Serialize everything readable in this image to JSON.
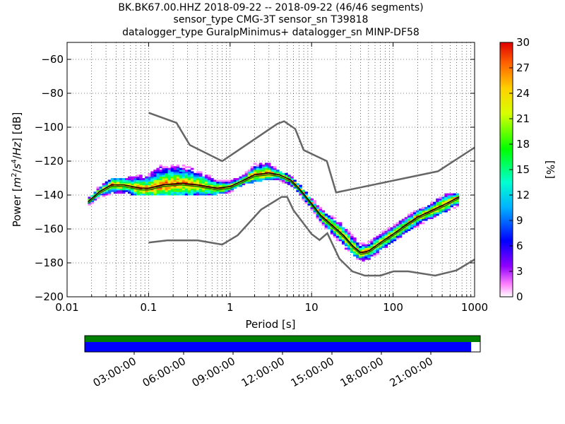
{
  "title": {
    "line1": "BK.BK67.00.HHZ   2018-09-22 -- 2018-09-22  (46/46 segments)",
    "line2": "sensor_type CMG-3T sensor_sn T39818",
    "line3": "datalogger_type GuralpMinimus+ datalogger_sn MINP-DF58"
  },
  "chart_data": {
    "type": "heatmap",
    "x_scale": "log",
    "xlabel": "Period [s]",
    "ylabel": "Power [m²/s⁴/Hz] [dB]",
    "xlim": [
      0.01,
      1000
    ],
    "ylim": [
      -200,
      -50
    ],
    "x_ticks": [
      {
        "value": 0.01,
        "label": "0.01"
      },
      {
        "value": 0.1,
        "label": "0.1"
      },
      {
        "value": 1,
        "label": "1"
      },
      {
        "value": 10,
        "label": "10"
      },
      {
        "value": 100,
        "label": "100"
      },
      {
        "value": 1000,
        "label": "1000"
      }
    ],
    "y_ticks": [
      {
        "value": -60,
        "label": "−60"
      },
      {
        "value": -80,
        "label": "−80"
      },
      {
        "value": -100,
        "label": "−100"
      },
      {
        "value": -120,
        "label": "−120"
      },
      {
        "value": -140,
        "label": "−140"
      },
      {
        "value": -160,
        "label": "−160"
      },
      {
        "value": -180,
        "label": "−180"
      },
      {
        "value": -200,
        "label": "−200"
      }
    ],
    "grid": true,
    "colorbar": {
      "label": "[%]",
      "range": [
        0,
        30
      ],
      "ticks": [
        "0",
        "3",
        "6",
        "9",
        "12",
        "15",
        "18",
        "21",
        "24",
        "27",
        "30"
      ],
      "colormap": "pqlx"
    },
    "noise_models": [
      {
        "name": "high-noise-model",
        "points": [
          [
            0.1,
            -91.5
          ],
          [
            0.22,
            -97.4
          ],
          [
            0.32,
            -110.5
          ],
          [
            0.8,
            -120
          ],
          [
            3.8,
            -98
          ],
          [
            4.6,
            -96.5
          ],
          [
            6.3,
            -101
          ],
          [
            8,
            -113.5
          ],
          [
            15.4,
            -120
          ],
          [
            20,
            -138.5
          ],
          [
            354.8,
            -126
          ],
          [
            1000,
            -112
          ]
        ]
      },
      {
        "name": "low-noise-model",
        "points": [
          [
            0.1,
            -168
          ],
          [
            0.17,
            -166.7
          ],
          [
            0.4,
            -166.7
          ],
          [
            0.8,
            -169.2
          ],
          [
            1.24,
            -163.7
          ],
          [
            2.4,
            -148.6
          ],
          [
            4.3,
            -141.1
          ],
          [
            5,
            -141.1
          ],
          [
            6,
            -149
          ],
          [
            10,
            -163
          ],
          [
            12.5,
            -166.5
          ],
          [
            15.6,
            -162.5
          ],
          [
            21.9,
            -177.5
          ],
          [
            31.6,
            -185
          ],
          [
            45,
            -187.5
          ],
          [
            70,
            -187.5
          ],
          [
            101,
            -185
          ],
          [
            154,
            -185
          ],
          [
            328,
            -187.5
          ],
          [
            600,
            -184.4
          ],
          [
            1000,
            -178
          ]
        ]
      }
    ],
    "mode_curve": {
      "points": [
        [
          0.018,
          -144
        ],
        [
          0.025,
          -138
        ],
        [
          0.035,
          -134
        ],
        [
          0.05,
          -134
        ],
        [
          0.08,
          -136
        ],
        [
          0.1,
          -136
        ],
        [
          0.15,
          -134
        ],
        [
          0.25,
          -133
        ],
        [
          0.4,
          -134
        ],
        [
          0.7,
          -136
        ],
        [
          1,
          -135
        ],
        [
          1.5,
          -131
        ],
        [
          2,
          -128
        ],
        [
          3,
          -127
        ],
        [
          4,
          -128
        ],
        [
          5.5,
          -131
        ],
        [
          7,
          -136
        ],
        [
          10,
          -145
        ],
        [
          13,
          -152
        ],
        [
          18,
          -158
        ],
        [
          25,
          -164
        ],
        [
          32,
          -170
        ],
        [
          40,
          -174
        ],
        [
          50,
          -173
        ],
        [
          70,
          -168
        ],
        [
          100,
          -163
        ],
        [
          150,
          -157
        ],
        [
          200,
          -153
        ],
        [
          300,
          -149
        ],
        [
          450,
          -145
        ],
        [
          650,
          -141
        ]
      ]
    },
    "mean_curve": {
      "points": [
        [
          0.018,
          -145
        ],
        [
          0.025,
          -139
        ],
        [
          0.035,
          -135
        ],
        [
          0.05,
          -135
        ],
        [
          0.08,
          -137
        ],
        [
          0.1,
          -137
        ],
        [
          0.15,
          -135
        ],
        [
          0.25,
          -134
        ],
        [
          0.4,
          -135
        ],
        [
          0.7,
          -137
        ],
        [
          1,
          -136
        ],
        [
          1.5,
          -132
        ],
        [
          2,
          -129
        ],
        [
          3,
          -128
        ],
        [
          4,
          -129
        ],
        [
          5.5,
          -132
        ],
        [
          7,
          -137
        ],
        [
          10,
          -146
        ],
        [
          13,
          -153
        ],
        [
          18,
          -159
        ],
        [
          25,
          -165
        ],
        [
          32,
          -171
        ],
        [
          40,
          -175
        ],
        [
          50,
          -174
        ],
        [
          70,
          -169
        ],
        [
          100,
          -164
        ],
        [
          150,
          -158
        ],
        [
          200,
          -154
        ],
        [
          300,
          -150
        ],
        [
          450,
          -146
        ],
        [
          650,
          -142
        ]
      ]
    },
    "psd_spread": {
      "points": [
        [
          0.018,
          -146,
          -142
        ],
        [
          0.025,
          -141,
          -135
        ],
        [
          0.035,
          -139,
          -131
        ],
        [
          0.05,
          -139,
          -130
        ],
        [
          0.1,
          -140,
          -128
        ],
        [
          0.15,
          -140,
          -122
        ],
        [
          0.25,
          -140,
          -122
        ],
        [
          0.4,
          -140,
          -126
        ],
        [
          0.7,
          -139,
          -131
        ],
        [
          1,
          -138,
          -132
        ],
        [
          1.5,
          -134,
          -128
        ],
        [
          2,
          -132,
          -122
        ],
        [
          3,
          -130,
          -121
        ],
        [
          4,
          -131,
          -126
        ],
        [
          5.5,
          -134,
          -129
        ],
        [
          7,
          -139,
          -134
        ],
        [
          10,
          -148,
          -142
        ],
        [
          13,
          -156,
          -148
        ],
        [
          18,
          -163,
          -153
        ],
        [
          25,
          -170,
          -158
        ],
        [
          32,
          -175,
          -164
        ],
        [
          40,
          -179,
          -169
        ],
        [
          50,
          -178,
          -168
        ],
        [
          70,
          -173,
          -163
        ],
        [
          100,
          -167,
          -158
        ],
        [
          150,
          -161,
          -152
        ],
        [
          200,
          -158,
          -149
        ],
        [
          300,
          -153,
          -144
        ],
        [
          450,
          -149,
          -139
        ],
        [
          650,
          -146,
          -139
        ]
      ]
    },
    "timeline": {
      "tick_labels": [
        "03:00:00",
        "06:00:00",
        "09:00:00",
        "12:00:00",
        "15:00:00",
        "18:00:00",
        "21:00:00"
      ],
      "data_coverage": 1.0,
      "gap_coverage": 0.977,
      "colors": {
        "data": "#008000",
        "gaps": "#0000ff"
      }
    }
  },
  "colors": {
    "noise_model": "#666666",
    "mode": "#000000",
    "mean": "#008000"
  }
}
